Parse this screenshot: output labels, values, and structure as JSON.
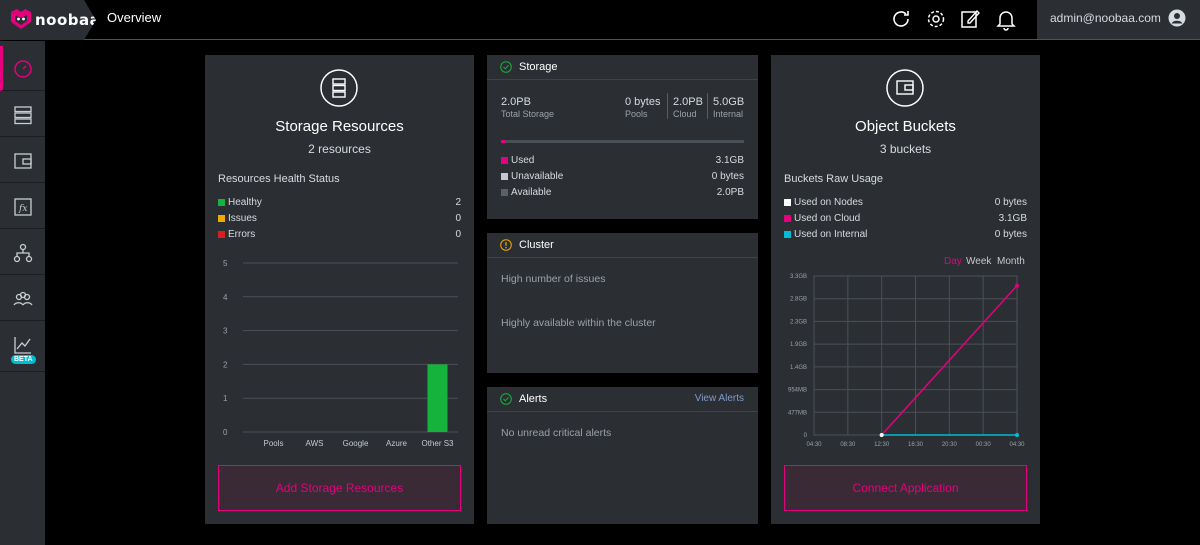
{
  "header": {
    "logo_text": "noobaa",
    "page_title": "Overview",
    "user_email": "admin@noobaa.com"
  },
  "icons": {
    "refresh": "refresh-icon",
    "settings": "gear-icon",
    "notes": "edit-icon",
    "notifications": "bell-icon",
    "avatar": "user-icon"
  },
  "sidebar": {
    "beta_label": "BETA"
  },
  "colors": {
    "accent": "#e4007f",
    "healthy": "#16b33c",
    "issues": "#f2a900",
    "errors": "#d81e1e",
    "cyan": "#00bcd4"
  },
  "storage_resources": {
    "title": "Storage Resources",
    "count": "2 resources",
    "health_title": "Resources Health Status",
    "legend": [
      {
        "label": "Healthy",
        "value": "2"
      },
      {
        "label": "Issues",
        "value": "0"
      },
      {
        "label": "Errors",
        "value": "0"
      }
    ],
    "button": "Add Storage Resources"
  },
  "storage": {
    "title": "Storage",
    "total_value": "2.0PB",
    "total_label": "Total Storage",
    "pools_value": "0 bytes",
    "pools_label": "Pools",
    "cloud_value": "2.0PB",
    "cloud_label": "Cloud",
    "internal_value": "5.0GB",
    "internal_label": "Internal",
    "used_fraction": 0.01,
    "legend": [
      {
        "label": "Used",
        "value": "3.1GB"
      },
      {
        "label": "Unavailable",
        "value": "0 bytes"
      },
      {
        "label": "Available",
        "value": "2.0PB"
      }
    ]
  },
  "cluster": {
    "title": "Cluster",
    "line1": "High number of issues",
    "line2": "Highly available within the cluster"
  },
  "alerts": {
    "title": "Alerts",
    "link": "View Alerts",
    "message": "No unread critical alerts"
  },
  "object_buckets": {
    "title": "Object Buckets",
    "count": "3 buckets",
    "usage_title": "Buckets Raw Usage",
    "legend": [
      {
        "label": "Used on Nodes",
        "value": "0 bytes"
      },
      {
        "label": "Used on Cloud",
        "value": "3.1GB"
      },
      {
        "label": "Used on Internal",
        "value": "0 bytes"
      }
    ],
    "ranges": [
      "Day",
      "Week",
      "Month"
    ],
    "button": "Connect Application"
  },
  "chart_data": [
    {
      "type": "bar",
      "categories": [
        "Pools",
        "AWS",
        "Google",
        "Azure",
        "Other S3"
      ],
      "values": [
        0,
        0,
        0,
        0,
        2
      ],
      "y_ticks": [
        "0",
        "1",
        "2",
        "3",
        "4",
        "5"
      ],
      "ylim": [
        0,
        5
      ]
    },
    {
      "type": "line",
      "x_ticks": [
        "04:30",
        "08:30",
        "12:30",
        "16:30",
        "20:30",
        "00:30",
        "04:30"
      ],
      "y_ticks": [
        "0",
        "477MB",
        "954MB",
        "1.4GB",
        "1.9GB",
        "2.3GB",
        "2.8GB",
        "3.3GB"
      ],
      "series": [
        {
          "name": "Used on Cloud",
          "color": "#e4007f",
          "points": [
            [
              2,
              0
            ],
            [
              6,
              3.1
            ]
          ]
        },
        {
          "name": "Used on Internal",
          "color": "#00bcd4",
          "points": [
            [
              2,
              0
            ],
            [
              6,
              0
            ]
          ]
        }
      ],
      "ylim": [
        0,
        3.3
      ]
    }
  ]
}
